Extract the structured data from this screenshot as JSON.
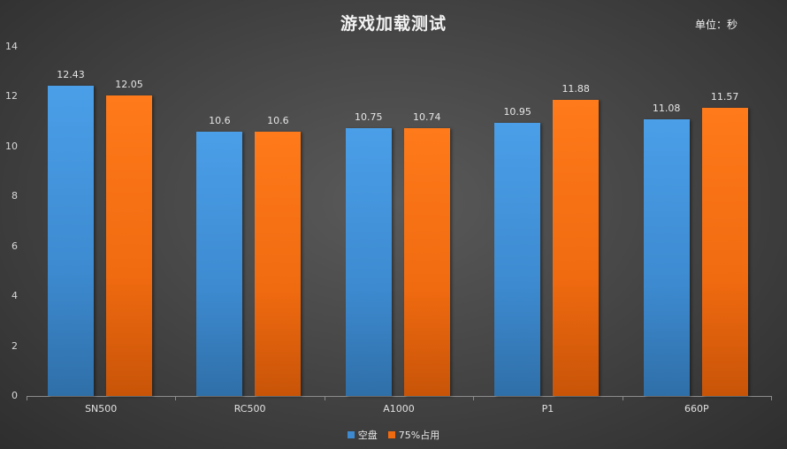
{
  "chart_data": {
    "type": "bar",
    "title": "游戏加载测试",
    "unit_label": "单位：秒",
    "categories": [
      "SN500",
      "RC500",
      "A1000",
      "P1",
      "660P"
    ],
    "series": [
      {
        "name": "空盘",
        "color": "#3d8ad0",
        "values": [
          12.43,
          10.6,
          10.75,
          10.95,
          11.08
        ]
      },
      {
        "name": "75%占用",
        "color": "#f06a10",
        "values": [
          12.05,
          10.6,
          10.74,
          11.88,
          11.57
        ]
      }
    ],
    "xlabel": "",
    "ylabel": "",
    "ylim": [
      0,
      14
    ],
    "yticks": [
      0,
      2,
      4,
      6,
      8,
      10,
      12,
      14
    ],
    "grid": false,
    "legend_position": "bottom",
    "data_labels": [
      [
        "12.43",
        "10.6",
        "10.75",
        "10.95",
        "11.08"
      ],
      [
        "12.05",
        "10.6",
        "10.74",
        "11.88",
        "11.57"
      ]
    ]
  }
}
